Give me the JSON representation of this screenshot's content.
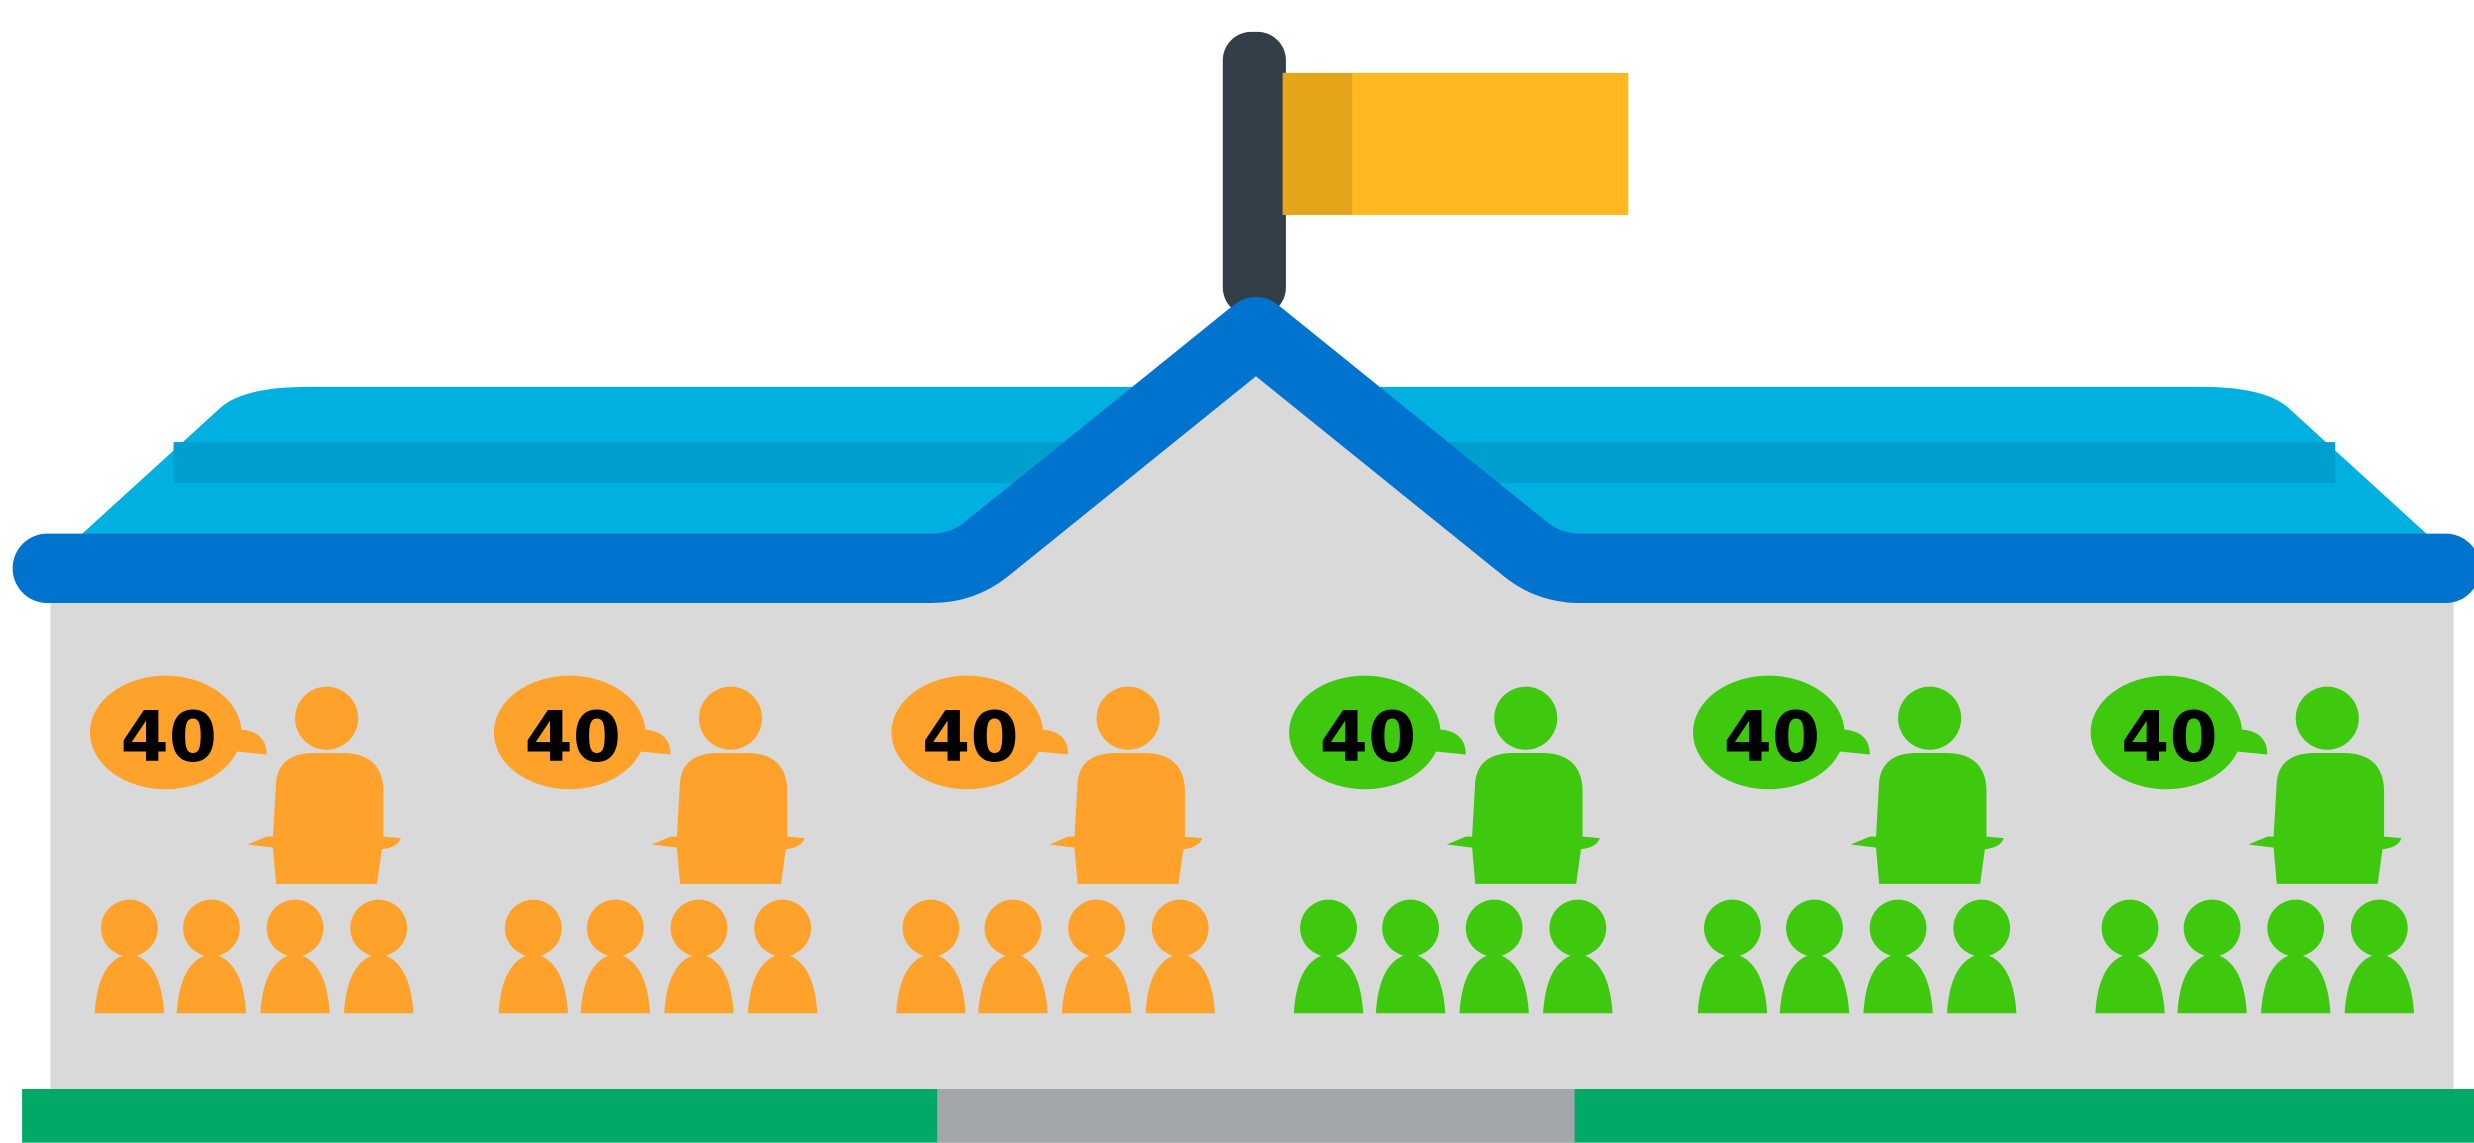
{
  "classes": [
    {
      "label": "40",
      "color": "#ffa22b"
    },
    {
      "label": "40",
      "color": "#ffa22b"
    },
    {
      "label": "40",
      "color": "#ffa22b"
    },
    {
      "label": "40",
      "color": "#3ec90f"
    },
    {
      "label": "40",
      "color": "#3ec90f"
    },
    {
      "label": "40",
      "color": "#3ec90f"
    }
  ]
}
